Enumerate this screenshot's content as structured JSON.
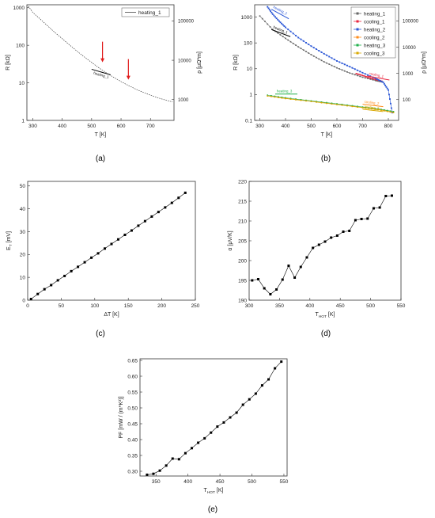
{
  "panel_labels": [
    "(a)",
    "(b)",
    "(c)",
    "(d)",
    "(e)"
  ],
  "chart_data": [
    {
      "panel": "(a)",
      "type": "line",
      "xlabel": "T [K]",
      "ylabel": "R [kΩ]",
      "ylabel_right": "ρ [μΩ*m]",
      "log_y": true,
      "xlim": [
        280,
        780
      ],
      "ylim": [
        1,
        1200
      ],
      "x_ticks": [
        "300",
        "400",
        "500",
        "600",
        "700"
      ],
      "y_ticks": [
        "1",
        "10",
        "100",
        "1000"
      ],
      "y_right_ticks": [
        "1000",
        "10000",
        "100000"
      ],
      "legend": "top-right",
      "series": [
        {
          "name": "heating_1",
          "color": "#444444",
          "x": [
            285,
            300,
            325,
            350,
            375,
            400,
            425,
            450,
            475,
            500,
            525,
            550,
            575,
            600,
            625,
            650,
            675,
            700,
            725,
            750,
            775
          ],
          "y": [
            1100,
            750,
            500,
            330,
            220,
            150,
            102,
            70,
            49,
            35,
            25,
            18.5,
            14,
            10.8,
            8.5,
            6.8,
            5.6,
            4.7,
            4.0,
            3.5,
            3.1
          ]
        }
      ],
      "annotations": [
        {
          "text": "heating_1",
          "kind": "arrow-label"
        },
        {
          "kind": "red-arrow",
          "x": 537,
          "y": 32
        },
        {
          "kind": "red-arrow",
          "x": 625,
          "y": 11
        }
      ]
    },
    {
      "panel": "(b)",
      "type": "line",
      "xlabel": "T [K]",
      "ylabel": "R [kΩ]",
      "ylabel_right": "ρ [μΩ*m]",
      "log_y": true,
      "xlim": [
        280,
        840
      ],
      "ylim": [
        0.1,
        3000
      ],
      "x_ticks": [
        "300",
        "400",
        "500",
        "600",
        "700",
        "800"
      ],
      "y_ticks": [
        "0.1",
        "1",
        "10",
        "100",
        "1000"
      ],
      "y_right_ticks": [
        "100",
        "1000",
        "10000",
        "100000"
      ],
      "legend": "top-right",
      "series": [
        {
          "name": "heating_1",
          "color": "#666666",
          "x": [
            300,
            350,
            400,
            450,
            500,
            550,
            600,
            650,
            700,
            750,
            775
          ],
          "y": [
            1100,
            330,
            150,
            70,
            35,
            18.5,
            10.8,
            6.8,
            4.7,
            3.5,
            3.1
          ]
        },
        {
          "name": "cooling_1",
          "color": "#e8233c",
          "x": [
            775,
            750,
            725,
            700,
            675
          ],
          "y": [
            3.3,
            3.8,
            4.5,
            5.5,
            6.5
          ]
        },
        {
          "name": "heating_2",
          "color": "#2a56d6",
          "x": [
            330,
            350,
            375,
            400,
            450,
            500,
            550,
            600,
            650,
            700,
            750,
            780,
            800,
            815
          ],
          "y": [
            2500,
            1300,
            700,
            400,
            160,
            75,
            38,
            20,
            12,
            7,
            4.2,
            3.0,
            1.5,
            0.2
          ]
        },
        {
          "name": "cooling_2",
          "color": "#ff8c1a",
          "x": [
            330,
            400,
            500,
            600,
            700,
            760,
            820
          ],
          "y": [
            0.9,
            0.72,
            0.55,
            0.42,
            0.32,
            0.27,
            0.21
          ]
        },
        {
          "name": "heating_3",
          "color": "#22b14c",
          "x": [
            330,
            400,
            500,
            600,
            700,
            760,
            820
          ],
          "y": [
            0.95,
            0.75,
            0.57,
            0.44,
            0.33,
            0.28,
            0.22
          ]
        },
        {
          "name": "cooling_3",
          "color": "#d9a800",
          "x": [
            330,
            400,
            500,
            600,
            700,
            760,
            820
          ],
          "y": [
            0.88,
            0.7,
            0.54,
            0.41,
            0.31,
            0.26,
            0.2
          ]
        }
      ],
      "annotations": [
        {
          "text": "heating_2"
        },
        {
          "text": "heating_1"
        },
        {
          "text": "cooling_1"
        },
        {
          "text": "heating_3"
        },
        {
          "text": "cooling_2"
        },
        {
          "text": "cooling_3"
        }
      ]
    },
    {
      "panel": "(c)",
      "type": "scatter",
      "xlabel": "ΔT [K]",
      "ylabel": "E_T [mV]",
      "xlim": [
        0,
        250
      ],
      "ylim": [
        0,
        52
      ],
      "x_ticks": [
        "0",
        "50",
        "100",
        "150",
        "200",
        "250"
      ],
      "y_ticks": [
        "0",
        "10",
        "20",
        "30",
        "40",
        "50"
      ],
      "series": [
        {
          "name": "",
          "color": "#000000",
          "x": [
            5,
            15,
            25,
            35,
            45,
            55,
            65,
            75,
            85,
            95,
            105,
            115,
            125,
            135,
            145,
            155,
            165,
            175,
            185,
            195,
            205,
            215,
            225,
            235
          ],
          "y": [
            0.5,
            2.7,
            4.8,
            6.6,
            8.7,
            10.6,
            12.7,
            14.6,
            16.6,
            18.6,
            20.5,
            22.6,
            24.6,
            26.6,
            28.6,
            30.5,
            32.6,
            34.6,
            36.6,
            38.6,
            40.6,
            42.6,
            44.8,
            47.0
          ]
        }
      ]
    },
    {
      "panel": "(d)",
      "type": "line",
      "xlabel": "T_HOT [K]",
      "ylabel": "α [μV/K]",
      "xlim": [
        300,
        550
      ],
      "ylim": [
        190,
        220
      ],
      "x_ticks": [
        "300",
        "350",
        "400",
        "450",
        "500",
        "550"
      ],
      "y_ticks": [
        "190",
        "195",
        "200",
        "205",
        "210",
        "215",
        "220"
      ],
      "series": [
        {
          "name": "",
          "color": "#000000",
          "x": [
            305,
            315,
            325,
            335,
            345,
            355,
            365,
            375,
            385,
            395,
            405,
            415,
            425,
            435,
            445,
            455,
            465,
            475,
            485,
            495,
            505,
            515,
            525,
            535
          ],
          "y": [
            195,
            195.3,
            193,
            191.5,
            192.7,
            195.2,
            198.7,
            195.7,
            198.4,
            200.8,
            203.2,
            204,
            204.8,
            205.8,
            206.3,
            207.3,
            207.5,
            210.2,
            210.5,
            210.6,
            213.2,
            213.4,
            216.3,
            216.4
          ]
        }
      ]
    },
    {
      "panel": "(e)",
      "type": "line",
      "xlabel": "T_HOT [K]",
      "ylabel": "PF [mW / (m*K²)]",
      "xlim": [
        325,
        555
      ],
      "ylim": [
        0.285,
        0.655
      ],
      "x_ticks": [
        "350",
        "400",
        "450",
        "500",
        "550"
      ],
      "y_ticks": [
        "0.30",
        "0.35",
        "0.40",
        "0.45",
        "0.50",
        "0.55",
        "0.60",
        "0.65"
      ],
      "series": [
        {
          "name": "",
          "color": "#000000",
          "x": [
            336,
            346,
            356,
            366,
            376,
            386,
            396,
            406,
            416,
            426,
            436,
            446,
            456,
            466,
            476,
            486,
            496,
            506,
            516,
            526,
            536,
            546
          ],
          "y": [
            0.289,
            0.292,
            0.302,
            0.318,
            0.34,
            0.338,
            0.357,
            0.373,
            0.39,
            0.404,
            0.422,
            0.441,
            0.454,
            0.47,
            0.485,
            0.51,
            0.527,
            0.545,
            0.571,
            0.59,
            0.625,
            0.646
          ]
        }
      ]
    }
  ]
}
